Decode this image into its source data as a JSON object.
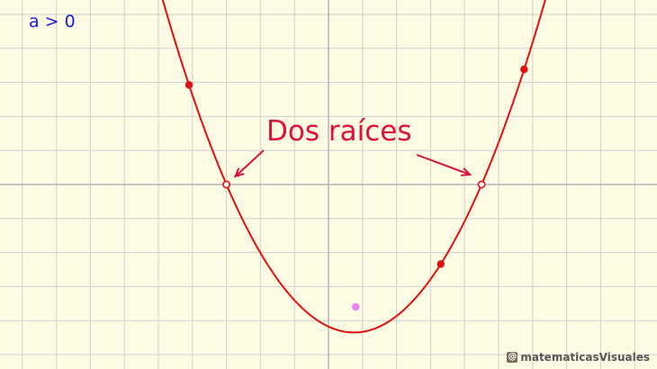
{
  "condition_label": "a > 0",
  "roots_label": "Dos raíces",
  "brand": {
    "mark": "@",
    "text": "matematicasVisuales"
  },
  "colors": {
    "background": "#fdfbe3",
    "grid": "#cfcfcf",
    "axis": "#b5b5b5",
    "curve": "#e01010",
    "arrow": "#e0103a",
    "label_blue": "#1a1ad6",
    "vertex_point": "#f07ff0"
  },
  "parabola": {
    "root_left": -3,
    "root_right": 4.5,
    "vertex": [
      0.75,
      -4.35
    ],
    "points_on_curve": [
      [
        -4.1,
        3.5
      ],
      [
        3.3,
        -2.45
      ],
      [
        5.75,
        3.45
      ]
    ],
    "highlight_point": [
      0.8,
      -3.6
    ]
  },
  "axes": {
    "x_range": [
      -9.5,
      9.5
    ],
    "y_range": [
      -5.4,
      5.4
    ]
  }
}
